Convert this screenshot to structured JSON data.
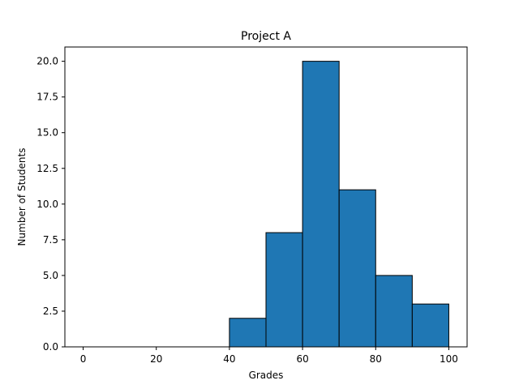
{
  "chart_data": {
    "type": "bar",
    "title": "Project A",
    "xlabel": "Grades",
    "ylabel": "Number of Students",
    "bin_edges": [
      0,
      10,
      20,
      30,
      40,
      50,
      60,
      70,
      80,
      90,
      100
    ],
    "values": [
      0,
      0,
      0,
      0,
      2,
      8,
      20,
      11,
      5,
      3
    ],
    "xlim": [
      -5,
      105
    ],
    "ylim": [
      0,
      21
    ],
    "x_ticks": [
      0,
      20,
      40,
      60,
      80,
      100
    ],
    "x_tick_labels": [
      "0",
      "20",
      "40",
      "60",
      "80",
      "100"
    ],
    "y_ticks": [
      0,
      2.5,
      5,
      7.5,
      10,
      12.5,
      15,
      17.5,
      20
    ],
    "y_tick_labels": [
      "0.0",
      "2.5",
      "5.0",
      "7.5",
      "10.0",
      "12.5",
      "15.0",
      "17.5",
      "20.0"
    ],
    "grid": false,
    "bar_color": "#1f77b4",
    "edge_color": "#000000"
  }
}
